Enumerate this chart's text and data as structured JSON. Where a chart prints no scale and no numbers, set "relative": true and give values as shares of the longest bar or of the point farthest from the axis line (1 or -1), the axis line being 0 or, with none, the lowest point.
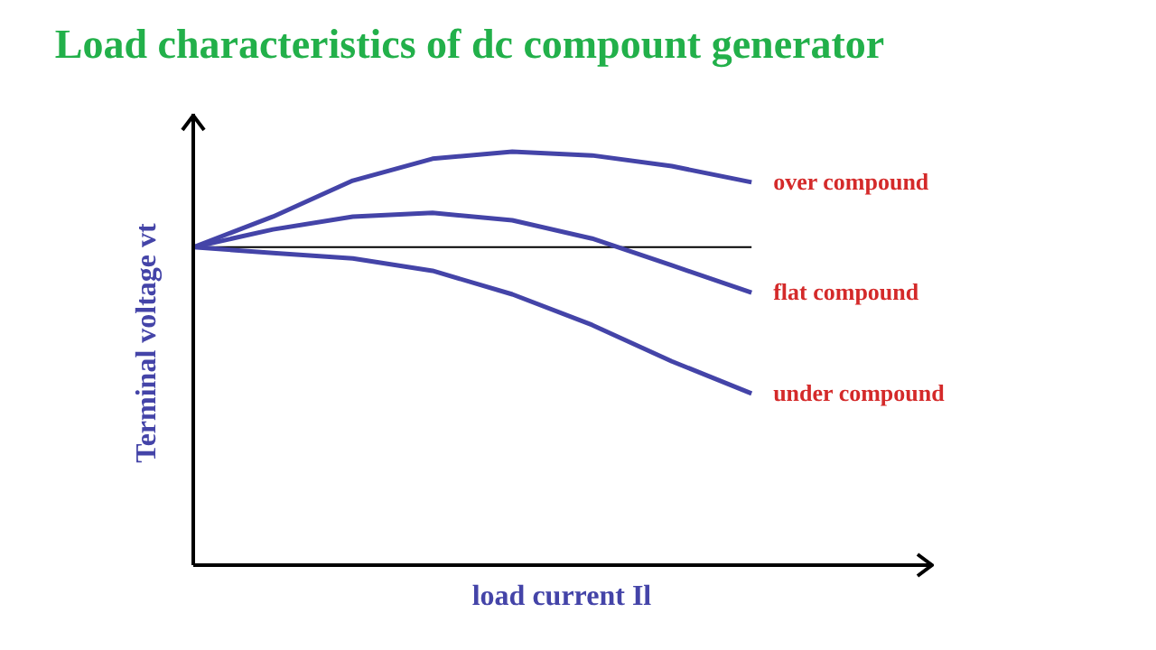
{
  "chart_data": {
    "type": "line",
    "title": "Load characteristics of dc compount generator",
    "xlabel": "load current Il",
    "ylabel": "Terminal voltage vt",
    "relative": true,
    "categories": [
      null,
      null,
      null,
      null,
      null,
      null,
      null,
      null
    ],
    "series": [
      {
        "name": "over compound",
        "color": "#4444a8",
        "values": [
          0.769,
          0.843,
          0.93,
          0.983,
          1,
          0.991,
          0.965,
          0.926
        ]
      },
      {
        "name": "flat compound",
        "color": "#4444a8",
        "values": [
          0.769,
          0.812,
          0.843,
          0.852,
          0.834,
          0.79,
          0.725,
          0.659
        ]
      },
      {
        "name": "under compound",
        "color": "#4444a8",
        "values": [
          0.769,
          0.755,
          0.742,
          0.712,
          0.655,
          0.581,
          0.493,
          0.415
        ]
      }
    ],
    "ref_lines": [
      {
        "axis": "y",
        "value": 0.769,
        "color": "#000000"
      }
    ],
    "grid": false,
    "legend": false,
    "marker": "none",
    "line_style": "solid"
  }
}
